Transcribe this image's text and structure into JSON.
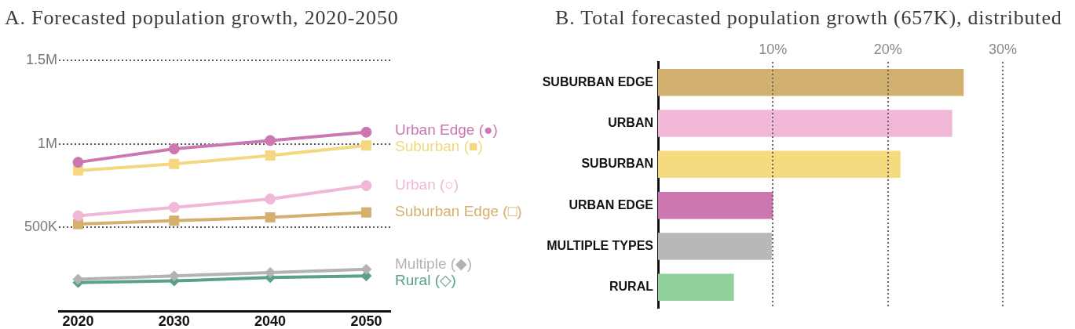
{
  "chart_data": [
    {
      "type": "line",
      "title": "A. Forecasted population growth, 2020-2050",
      "x": [
        2020,
        2030,
        2040,
        2050
      ],
      "xlim": [
        2018,
        2052.5
      ],
      "xticks": [
        2020,
        2030,
        2040,
        2050
      ],
      "ylim": [
        0,
        1500000
      ],
      "yticks": [
        {
          "value": 500000,
          "label": "500K"
        },
        {
          "value": 1000000,
          "label": "1M"
        },
        {
          "value": 1500000,
          "label": "1.5M"
        }
      ],
      "grid": "y",
      "series": [
        {
          "name": "Urban Edge (●)",
          "color": "#cc77b0",
          "marker": "circle",
          "values": [
            890000,
            970000,
            1020000,
            1070000
          ]
        },
        {
          "name": "Suburban (■)",
          "color": "#f5d77f",
          "marker": "square",
          "values": [
            840000,
            880000,
            930000,
            990000
          ]
        },
        {
          "name": "Urban (○)",
          "color": "#f0b8d6",
          "marker": "circle",
          "values": [
            570000,
            620000,
            670000,
            750000
          ]
        },
        {
          "name": "Suburban Edge (□)",
          "color": "#d4b06e",
          "marker": "square",
          "values": [
            520000,
            540000,
            560000,
            590000
          ]
        },
        {
          "name": "Multiple (◆)",
          "color": "#b3b3b3",
          "marker": "diamond",
          "values": [
            190000,
            210000,
            230000,
            250000
          ]
        },
        {
          "name": "Rural (◇)",
          "color": "#5aa08f",
          "marker": "diamond",
          "values": [
            170000,
            180000,
            200000,
            210000
          ]
        }
      ]
    },
    {
      "type": "bar",
      "orientation": "horizontal",
      "title": "B. Total forecasted population growth (657K), distributed",
      "categories": [
        "SUBURBAN EDGE",
        "URBAN",
        "SUBURBAN",
        "URBAN EDGE",
        "MULTIPLE TYPES",
        "RURAL"
      ],
      "values": [
        26.6,
        25.6,
        21.1,
        10.0,
        9.9,
        6.6
      ],
      "colors": [
        "#d2b06f",
        "#f0b8d6",
        "#f5da80",
        "#cc77b0",
        "#b8b8b8",
        "#90d09a"
      ],
      "xlim": [
        0,
        30
      ],
      "xticks": [
        {
          "value": 10,
          "label": "10%"
        },
        {
          "value": 20,
          "label": "20%"
        },
        {
          "value": 30,
          "label": "30%"
        }
      ],
      "grid": "x"
    }
  ]
}
